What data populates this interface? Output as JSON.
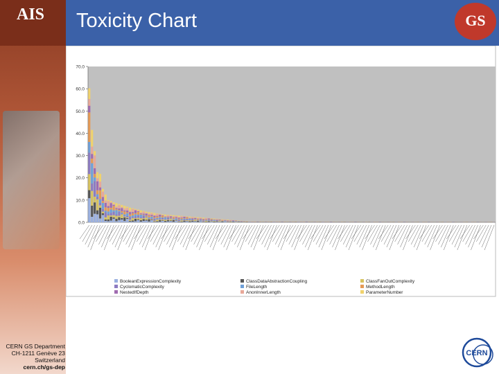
{
  "header": {
    "title": "Toxicity Chart",
    "left_logo": "AIS",
    "right_logo": "GS"
  },
  "footer": {
    "address": [
      "CERN GS Department",
      "CH-1211 Genève 23",
      "Switzerland",
      "cern.ch/gs-dep"
    ],
    "logo": "CERN"
  },
  "colors": {
    "header_blue": "#3b61a8",
    "plot_bg": "#c0c0c0",
    "BooleanExpressionComplexity": "#9ab0e0",
    "ClassDataAbstractionCoupling": "#555555",
    "ClassFanOutComplexity": "#d6c25f",
    "CyclomaticComplexity": "#8c7bc2",
    "FileLength": "#6fa0d8",
    "MethodLength": "#e59a55",
    "NestedIfDepth": "#a06bb0",
    "AnonInnerLength": "#e8a898",
    "ParameterNumber": "#f0d26c"
  },
  "chart_data": {
    "type": "bar",
    "stacked": true,
    "ylim": [
      0,
      70
    ],
    "yticks": [
      "0.0",
      "10.0",
      "20.0",
      "30.0",
      "40.0",
      "50.0",
      "60.0",
      "70.0"
    ],
    "grid": false,
    "legend_position": "bottom",
    "legend": [
      "BooleanExpressionComplexity",
      "ClassDataAbstractionCoupling",
      "ClassFanOutComplexity",
      "CyclomaticComplexity",
      "FileLength",
      "MethodLength",
      "NestedIfDepth",
      "AnonInnerLength",
      "ParameterNumber"
    ],
    "category_count": 150,
    "totals_profile": [
      60.2,
      41.5,
      32.0,
      22.5,
      21.8,
      15.0,
      12.5,
      10.0,
      9.6,
      9.0,
      8.6,
      8.2,
      7.8,
      7.4,
      7.0,
      6.6,
      6.3,
      6.0,
      5.7,
      5.4,
      5.1,
      4.8,
      4.6,
      4.4,
      4.2,
      4.0,
      3.8,
      3.6,
      3.5,
      3.4,
      3.3,
      3.2,
      3.1,
      3.0,
      2.9,
      2.8,
      2.7,
      2.6,
      2.5,
      2.4,
      2.3,
      2.2,
      2.1,
      2.0,
      1.9,
      1.8,
      1.7,
      1.6,
      1.5,
      1.4,
      1.3,
      1.2,
      1.1,
      1.0,
      0.9,
      0.8,
      0.7,
      0.6,
      0.5,
      0.4
    ]
  }
}
